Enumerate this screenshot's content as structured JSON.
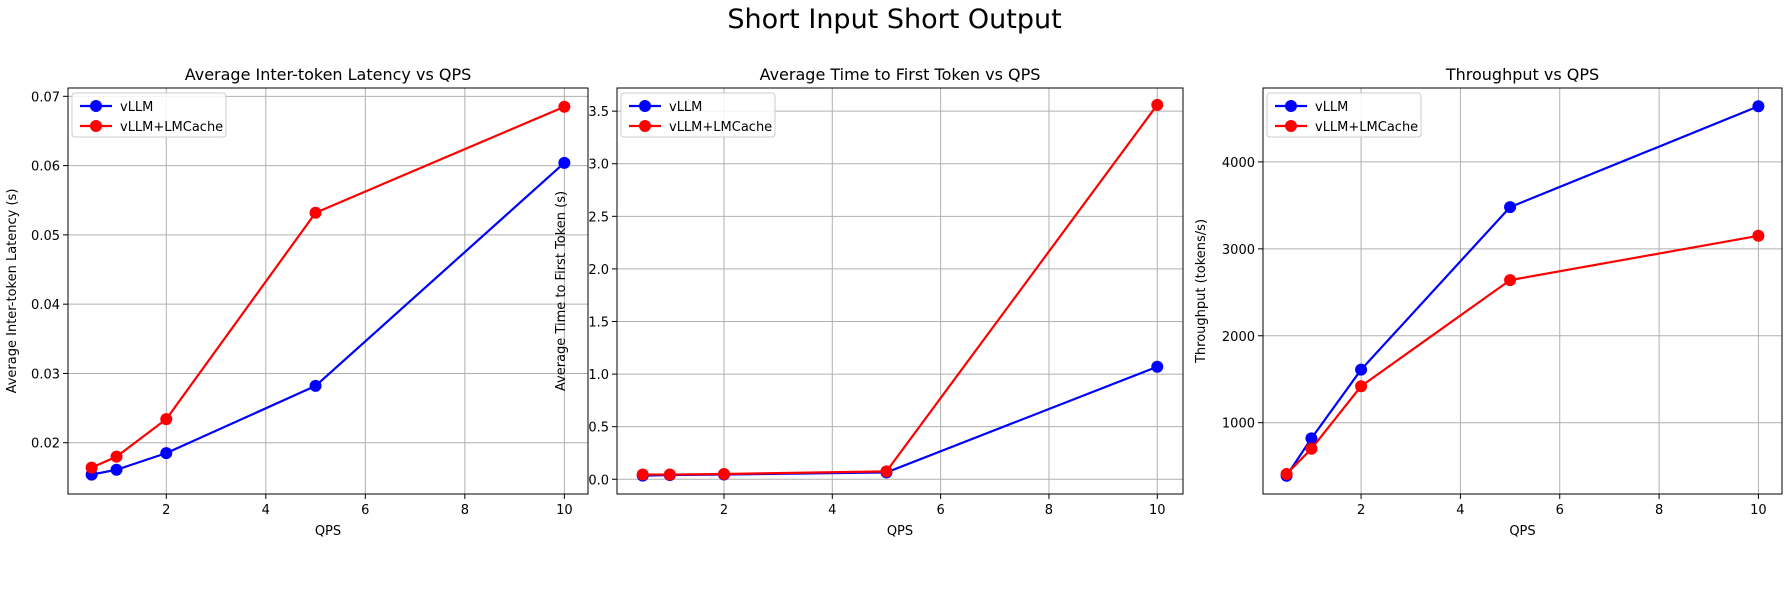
{
  "figure": {
    "title": "Short Input Short Output",
    "colors": {
      "vllm": "#0000ff",
      "lmcache": "#ff0000",
      "grid": "#b0b0b0"
    }
  },
  "chart_data": [
    {
      "type": "line",
      "title": "Average Inter-token Latency vs QPS",
      "xlabel": "QPS",
      "ylabel": "Average Inter-token Latency (s)",
      "xlim": [
        0.025,
        10.475
      ],
      "ylim": [
        0.0126,
        0.0712
      ],
      "xticks": [
        2,
        4,
        6,
        8,
        10
      ],
      "yticks": [
        0.02,
        0.03,
        0.04,
        0.05,
        0.06,
        0.07
      ],
      "ytick_labels": [
        "0.02",
        "0.03",
        "0.04",
        "0.05",
        "0.06",
        "0.07"
      ],
      "grid": true,
      "legend": "top-left",
      "x": [
        0.5,
        1,
        2,
        5,
        10
      ],
      "series": [
        {
          "name": "vLLM",
          "values": [
            0.0154,
            0.0161,
            0.0185,
            0.0282,
            0.0604
          ]
        },
        {
          "name": "vLLM+LMCache",
          "values": [
            0.0164,
            0.018,
            0.0234,
            0.0532,
            0.0685
          ]
        }
      ]
    },
    {
      "type": "line",
      "title": "Average Time to First Token vs QPS",
      "xlabel": "QPS",
      "ylabel": "Average Time to First Token (s)",
      "xlim": [
        0.025,
        10.475
      ],
      "ylim": [
        -0.14,
        3.72
      ],
      "xticks": [
        2,
        4,
        6,
        8,
        10
      ],
      "yticks": [
        0.0,
        0.5,
        1.0,
        1.5,
        2.0,
        2.5,
        3.0,
        3.5
      ],
      "ytick_labels": [
        "0.0",
        "0.5",
        "1.0",
        "1.5",
        "2.0",
        "2.5",
        "3.0",
        "3.5"
      ],
      "grid": true,
      "legend": "top-left",
      "x": [
        0.5,
        1,
        2,
        5,
        10
      ],
      "series": [
        {
          "name": "vLLM",
          "values": [
            0.035,
            0.04,
            0.045,
            0.065,
            1.07
          ]
        },
        {
          "name": "vLLM+LMCache",
          "values": [
            0.045,
            0.045,
            0.05,
            0.075,
            3.56
          ]
        }
      ]
    },
    {
      "type": "line",
      "title": "Throughput vs QPS",
      "xlabel": "QPS",
      "ylabel": "Throughput (tokens/s)",
      "xlim": [
        0.025,
        10.475
      ],
      "ylim": [
        180,
        4850
      ],
      "xticks": [
        2,
        4,
        6,
        8,
        10
      ],
      "yticks": [
        1000,
        2000,
        3000,
        4000
      ],
      "ytick_labels": [
        "1000",
        "2000",
        "3000",
        "4000"
      ],
      "grid": true,
      "legend": "top-left",
      "x": [
        0.5,
        1,
        2,
        5,
        10
      ],
      "series": [
        {
          "name": "vLLM",
          "values": [
            390,
            820,
            1610,
            3480,
            4640
          ]
        },
        {
          "name": "vLLM+LMCache",
          "values": [
            410,
            700,
            1420,
            2640,
            3150
          ]
        }
      ]
    }
  ]
}
